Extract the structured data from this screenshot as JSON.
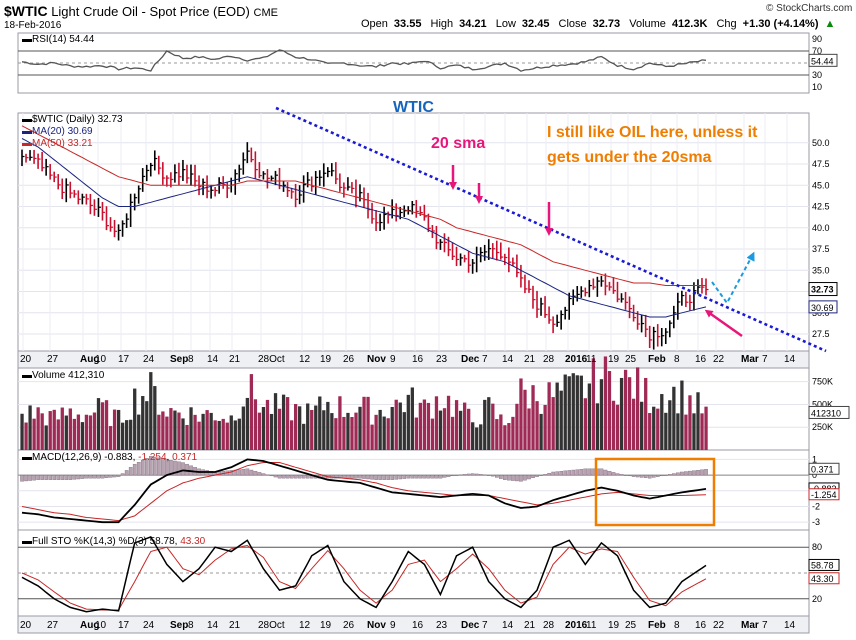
{
  "header": {
    "symbol": "$WTIC",
    "name": "Light Crude Oil - Spot Price (EOD)",
    "exchange": "CME",
    "date": "18-Feb-2016",
    "open_label": "Open",
    "open": "33.55",
    "high_label": "High",
    "high": "34.21",
    "low_label": "Low",
    "low": "32.45",
    "close_label": "Close",
    "close": "32.73",
    "volume_label": "Volume",
    "volume": "412.3K",
    "chg_label": "Chg",
    "chg": "+1.30 (+4.14%)",
    "chg_arrow": "▲",
    "brand": "© StockCharts.com"
  },
  "colors": {
    "up_bar": "#000000",
    "down_bar": "#c8102e",
    "ma20": "#1a237e",
    "ma50": "#c62828",
    "rsi": "#555555",
    "volume_up": "#333333",
    "volume_down": "#9e2a55",
    "trendline": "#1a1ad6",
    "annotation_pink": "#e8167a",
    "annotation_orange": "#ef7d00",
    "label_blue": "#1565c0",
    "panel_bg": "#ffffff",
    "grid": "#e4e4ee"
  },
  "panels": {
    "rsi": {
      "label": "RSI(14)",
      "value": "54.44",
      "ticks": [
        "90",
        "70",
        "50",
        "30",
        "10"
      ],
      "tag": "54.44"
    },
    "price": {
      "legend_symbol": "$WTIC (Daily)",
      "legend_value": "32.73",
      "ma20_label": "MA(20)",
      "ma20_value": "30.69",
      "ma50_label": "MA(50)",
      "ma50_value": "33.21",
      "ticks": [
        "50.0",
        "47.5",
        "45.0",
        "42.5",
        "40.0",
        "37.5",
        "35.0",
        "32.5",
        "30.0",
        "27.5"
      ],
      "tag_close": "32.73",
      "tag_ma20": "30.69"
    },
    "volume": {
      "label": "Volume",
      "value": "412,310",
      "ticks": [
        "750K",
        "500K",
        "250K"
      ],
      "tag": "412310"
    },
    "macd": {
      "label": "MACD(12,26,9)",
      "v1": "-0.883",
      "v2": "-1.254",
      "v3": "0.371",
      "ticks": [
        "1",
        "0",
        "-1",
        "-2",
        "-3"
      ],
      "tag1": "0.371",
      "tag2": "-0.883",
      "tag3": "-1.254"
    },
    "sto": {
      "label": "Full STO %K(14,3) %D(3)",
      "k": "58.78",
      "d": "43.30",
      "ticks": [
        "80",
        "20"
      ],
      "tag1": "58.78",
      "tag2": "43.30"
    }
  },
  "annotations": {
    "wtic": "WTIC",
    "sma": "20 sma",
    "comment_line1": "I still like OIL here, unless it",
    "comment_line2": "gets under the 20sma"
  },
  "x_axis": {
    "labels": [
      "20",
      "27",
      "Aug",
      "10",
      "17",
      "24",
      "Sep",
      "8",
      "14",
      "21",
      "28Oct",
      "12",
      "19",
      "26",
      "Nov",
      "9",
      "16",
      "23",
      "Dec",
      "7",
      "14",
      "21",
      "28",
      "2016",
      "11",
      "19",
      "25",
      "Feb",
      "8",
      "16",
      "22",
      "Mar",
      "7",
      "14"
    ]
  },
  "chart_data": [
    {
      "type": "line",
      "title": "RSI(14)",
      "x": [
        0,
        4,
        8,
        12,
        16,
        20,
        24,
        28,
        32,
        36,
        40,
        44,
        48,
        52,
        56,
        60,
        64,
        68,
        72,
        76,
        80,
        84,
        88,
        92,
        96,
        100,
        104,
        108,
        112,
        116,
        120,
        124,
        128,
        132,
        136,
        140,
        144,
        148,
        152,
        156,
        160,
        164,
        170
      ],
      "series": [
        {
          "name": "RSI(14)",
          "values": [
            52,
            48,
            50,
            45,
            44,
            46,
            40,
            42,
            38,
            70,
            58,
            60,
            56,
            62,
            55,
            58,
            72,
            60,
            56,
            48,
            50,
            46,
            44,
            50,
            48,
            54,
            42,
            46,
            40,
            44,
            50,
            38,
            42,
            46,
            48,
            52,
            60,
            46,
            40,
            50,
            44,
            48,
            54.44
          ]
        }
      ],
      "ylim": [
        0,
        100
      ]
    },
    {
      "type": "line",
      "title": "$WTIC (Daily)",
      "x": [
        0,
        4,
        8,
        12,
        16,
        20,
        24,
        28,
        32,
        36,
        40,
        44,
        48,
        52,
        56,
        60,
        64,
        68,
        72,
        76,
        80,
        84,
        88,
        92,
        96,
        100,
        104,
        108,
        112,
        116,
        120,
        124,
        128,
        132,
        136,
        140,
        144,
        148,
        152,
        156,
        160,
        164,
        170
      ],
      "series": [
        {
          "name": "$WTIC (Daily)",
          "values": [
            48.5,
            47.5,
            45.5,
            44.0,
            43.0,
            41.5,
            39.0,
            44.0,
            48.0,
            46.0,
            46.5,
            45.0,
            44.5,
            45.5,
            49.0,
            46.0,
            45.5,
            44.0,
            45.5,
            47.0,
            44.5,
            43.5,
            41.0,
            41.5,
            42.5,
            41.0,
            38.0,
            36.5,
            36.0,
            37.5,
            37.0,
            33.5,
            31.0,
            29.0,
            31.0,
            33.0,
            34.0,
            32.0,
            30.0,
            27.5,
            28.0,
            31.5,
            32.73
          ]
        },
        {
          "name": "MA(20)",
          "values": [
            50.5,
            49.5,
            48.0,
            46.5,
            45.0,
            43.5,
            42.5,
            42.5,
            43.0,
            43.5,
            44.0,
            44.5,
            45.0,
            45.5,
            46.0,
            45.5,
            45.0,
            44.5,
            44.0,
            43.5,
            43.0,
            42.5,
            42.0,
            41.5,
            41.0,
            40.0,
            39.0,
            38.0,
            37.0,
            36.5,
            36.0,
            35.0,
            34.0,
            33.0,
            32.0,
            31.5,
            31.0,
            30.5,
            30.0,
            29.5,
            29.5,
            30.0,
            30.69
          ]
        },
        {
          "name": "MA(50)",
          "values": [
            52.0,
            51.0,
            50.0,
            49.0,
            48.0,
            47.0,
            46.0,
            45.5,
            45.0,
            45.0,
            45.0,
            45.0,
            45.0,
            45.0,
            45.5,
            45.5,
            45.5,
            45.5,
            45.0,
            44.5,
            44.0,
            43.5,
            43.0,
            42.5,
            42.0,
            41.5,
            41.0,
            40.0,
            39.5,
            39.0,
            38.5,
            38.0,
            37.0,
            36.0,
            35.5,
            35.0,
            34.5,
            34.0,
            33.5,
            33.5,
            33.2,
            33.2,
            33.21
          ]
        }
      ],
      "ylim": [
        25.5,
        53.5
      ]
    },
    {
      "type": "bar",
      "title": "Volume",
      "x": [
        0,
        4,
        8,
        12,
        16,
        20,
        24,
        28,
        32,
        36,
        40,
        44,
        48,
        52,
        56,
        60,
        64,
        68,
        72,
        76,
        80,
        84,
        88,
        92,
        96,
        100,
        104,
        108,
        112,
        116,
        120,
        124,
        128,
        132,
        136,
        140,
        144,
        148,
        152,
        156,
        160,
        164,
        170
      ],
      "values": [
        380,
        410,
        340,
        420,
        390,
        450,
        330,
        560,
        650,
        430,
        410,
        380,
        400,
        350,
        680,
        480,
        460,
        440,
        390,
        520,
        450,
        470,
        410,
        480,
        550,
        450,
        580,
        470,
        320,
        460,
        280,
        620,
        600,
        590,
        650,
        700,
        800,
        760,
        720,
        580,
        620,
        600,
        412
      ],
      "ylim": [
        0,
        900
      ]
    },
    {
      "type": "line",
      "title": "MACD(12,26,9)",
      "x": [
        0,
        4,
        8,
        12,
        16,
        20,
        24,
        28,
        32,
        36,
        40,
        44,
        48,
        52,
        56,
        60,
        64,
        68,
        72,
        76,
        80,
        84,
        88,
        92,
        96,
        100,
        104,
        108,
        112,
        116,
        120,
        124,
        128,
        132,
        136,
        140,
        144,
        148,
        152,
        156,
        160,
        164,
        170
      ],
      "series": [
        {
          "name": "MACD",
          "values": [
            -2.4,
            -2.5,
            -2.7,
            -2.8,
            -2.9,
            -3.0,
            -3.0,
            -1.9,
            -0.6,
            0.0,
            0.3,
            0.2,
            0.2,
            0.5,
            1.0,
            0.9,
            0.6,
            0.3,
            0.0,
            -0.3,
            -0.4,
            -0.5,
            -0.8,
            -1.1,
            -1.2,
            -1.3,
            -1.4,
            -1.3,
            -1.2,
            -1.3,
            -1.8,
            -2.1,
            -2.0,
            -1.6,
            -1.3,
            -1.0,
            -0.8,
            -1.0,
            -1.3,
            -1.5,
            -1.3,
            -1.1,
            -0.883
          ]
        },
        {
          "name": "Signal",
          "values": [
            -2.0,
            -2.2,
            -2.4,
            -2.5,
            -2.7,
            -2.8,
            -2.9,
            -2.6,
            -1.8,
            -1.0,
            -0.5,
            -0.2,
            0.0,
            0.2,
            0.6,
            0.8,
            0.8,
            0.5,
            0.2,
            -0.1,
            -0.2,
            -0.3,
            -0.5,
            -0.8,
            -1.0,
            -1.1,
            -1.2,
            -1.3,
            -1.3,
            -1.3,
            -1.5,
            -1.7,
            -1.9,
            -1.8,
            -1.6,
            -1.4,
            -1.2,
            -1.1,
            -1.2,
            -1.3,
            -1.3,
            -1.3,
            -1.254
          ]
        },
        {
          "name": "Histogram",
          "values": [
            -0.4,
            -0.3,
            -0.3,
            -0.3,
            -0.2,
            -0.2,
            -0.1,
            0.7,
            1.2,
            1.0,
            0.8,
            0.4,
            0.2,
            0.3,
            0.4,
            0.1,
            -0.2,
            -0.2,
            -0.2,
            -0.2,
            -0.2,
            -0.2,
            -0.3,
            -0.3,
            -0.2,
            -0.2,
            -0.2,
            0.0,
            0.1,
            0.0,
            -0.3,
            -0.4,
            -0.1,
            0.2,
            0.3,
            0.4,
            0.4,
            0.1,
            -0.1,
            -0.2,
            0.0,
            0.2,
            0.371
          ]
        }
      ],
      "ylim": [
        -3.5,
        1.6
      ]
    },
    {
      "type": "line",
      "title": "Full STO %K(14,3) %D(3)",
      "x": [
        0,
        4,
        8,
        12,
        16,
        20,
        24,
        28,
        32,
        36,
        40,
        44,
        48,
        52,
        56,
        60,
        64,
        68,
        72,
        76,
        80,
        84,
        88,
        92,
        96,
        100,
        104,
        108,
        112,
        116,
        120,
        124,
        128,
        132,
        136,
        140,
        144,
        148,
        152,
        156,
        160,
        164,
        170
      ],
      "series": [
        {
          "name": "%K",
          "values": [
            45,
            35,
            20,
            10,
            5,
            8,
            6,
            85,
            92,
            60,
            40,
            55,
            80,
            75,
            88,
            55,
            30,
            35,
            70,
            82,
            40,
            20,
            10,
            40,
            75,
            60,
            25,
            70,
            80,
            40,
            20,
            10,
            30,
            80,
            88,
            60,
            85,
            70,
            30,
            10,
            15,
            40,
            58.78
          ]
        },
        {
          "name": "%D",
          "values": [
            50,
            42,
            28,
            15,
            8,
            7,
            7,
            40,
            75,
            80,
            55,
            48,
            65,
            78,
            82,
            68,
            40,
            32,
            55,
            76,
            55,
            30,
            15,
            30,
            60,
            65,
            40,
            55,
            72,
            55,
            30,
            15,
            22,
            60,
            80,
            72,
            78,
            75,
            45,
            18,
            12,
            28,
            43.3
          ]
        }
      ],
      "ylim": [
        0,
        100
      ]
    }
  ]
}
